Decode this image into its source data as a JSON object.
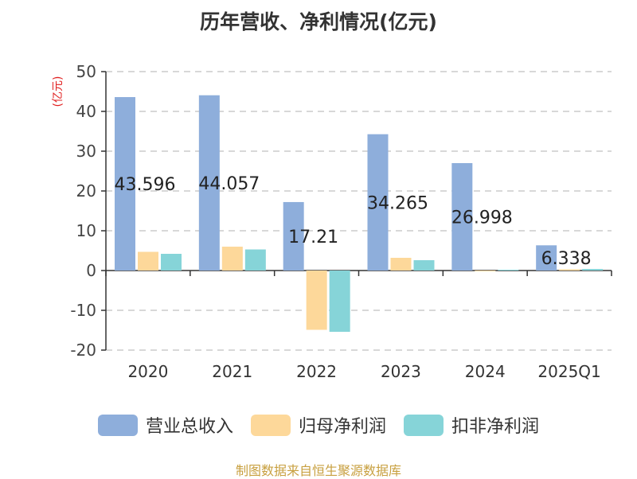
{
  "chart_data": {
    "type": "bar",
    "title": "历年营收、净利情况(亿元)",
    "unit_label": "(亿元)",
    "categories": [
      "2020",
      "2021",
      "2022",
      "2023",
      "2024",
      "2025Q1"
    ],
    "series": [
      {
        "name": "营业总收入",
        "color": "#8eaedb",
        "values": [
          43.596,
          44.057,
          17.21,
          34.265,
          26.998,
          6.338
        ]
      },
      {
        "name": "归母净利润",
        "color": "#fdd89a",
        "values": [
          4.7,
          6.0,
          -14.9,
          3.2,
          -0.2,
          0.3
        ]
      },
      {
        "name": "扣非净利润",
        "color": "#86d4d8",
        "values": [
          4.2,
          5.3,
          -15.4,
          2.6,
          0.2,
          0.4
        ]
      }
    ],
    "data_labels": [
      "43.596",
      "44.057",
      "17.21",
      "34.265",
      "26.998",
      "6.338"
    ],
    "yticks": [
      50,
      40,
      30,
      20,
      10,
      0,
      -10,
      -20
    ],
    "ylim": [
      -20,
      50
    ],
    "grid": true,
    "legend_position": "bottom"
  },
  "source": "制图数据来自恒生聚源数据库"
}
